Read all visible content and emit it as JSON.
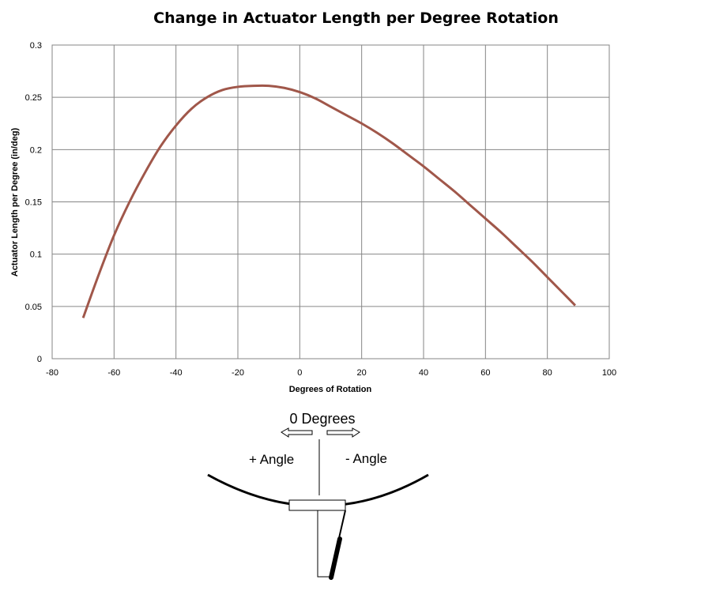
{
  "chart_data": {
    "type": "line",
    "title": "Change in Actuator Length per Degree Rotation",
    "xlabel": "Degrees of Rotation",
    "ylabel": "Actuator Length per Degree (in/deg)",
    "xlim": [
      -80,
      100
    ],
    "ylim": [
      0,
      0.3
    ],
    "x_ticks": [
      -80,
      -60,
      -40,
      -20,
      0,
      20,
      40,
      60,
      80,
      100
    ],
    "y_ticks": [
      0,
      0.05,
      0.1,
      0.15,
      0.2,
      0.25,
      0.3
    ],
    "x_tick_labels": [
      "-80",
      "-60",
      "-40",
      "-20",
      "0",
      "20",
      "40",
      "60",
      "80",
      "100"
    ],
    "y_tick_labels": [
      "0",
      "0.05",
      "0.1",
      "0.15",
      "0.2",
      "0.25",
      "0.3"
    ],
    "grid": true,
    "legend": "none",
    "series_color": "#A0574A",
    "series": [
      {
        "x": [
          -70,
          -65,
          -60,
          -55,
          -50,
          -45,
          -40,
          -35,
          -30,
          -25,
          -20,
          -15,
          -10,
          -5,
          0,
          5,
          10,
          15,
          20,
          25,
          30,
          35,
          40,
          45,
          50,
          55,
          60,
          65,
          70,
          75,
          80,
          85,
          89
        ],
        "values": [
          0.039,
          0.08,
          0.118,
          0.15,
          0.178,
          0.203,
          0.223,
          0.239,
          0.25,
          0.257,
          0.26,
          0.261,
          0.261,
          0.259,
          0.255,
          0.249,
          0.241,
          0.233,
          0.225,
          0.216,
          0.206,
          0.195,
          0.184,
          0.172,
          0.16,
          0.147,
          0.134,
          0.121,
          0.107,
          0.093,
          0.078,
          0.063,
          0.051
        ]
      }
    ]
  },
  "diagram": {
    "zero_label": "0 Degrees",
    "plus_label": "+ Angle",
    "minus_label": "- Angle"
  }
}
